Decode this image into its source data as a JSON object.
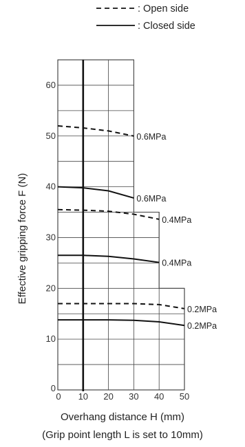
{
  "chart_data": {
    "type": "line",
    "xlabel": "Overhang distance H  (mm)",
    "xnote": "(Grip point length L is set to 10mm)",
    "ylabel": "Effective gripping force  F (N)",
    "xlim": [
      0,
      50
    ],
    "ylim": [
      0,
      65
    ],
    "x_ticks": [
      0,
      10,
      20,
      30,
      40,
      50
    ],
    "y_ticks": [
      0,
      10,
      20,
      30,
      40,
      50,
      60
    ],
    "x_ticks_text": [
      "0",
      "10",
      "20",
      "30",
      "40",
      "50"
    ],
    "y_ticks_text": [
      "0",
      "10",
      "20",
      "30",
      "40",
      "50",
      "60"
    ],
    "grid": true,
    "legend": [
      {
        "style": "dashed",
        "label": ": Open side"
      },
      {
        "style": "solid",
        "label": ": Closed side"
      }
    ],
    "series": [
      {
        "label": "0.6MPa",
        "style": "dashed",
        "x": [
          0,
          10,
          20,
          30
        ],
        "y": [
          52,
          51.6,
          51,
          50
        ]
      },
      {
        "label": "0.6MPa",
        "style": "solid",
        "x": [
          0,
          10,
          20,
          30
        ],
        "y": [
          40,
          39.8,
          39.2,
          37.8
        ]
      },
      {
        "label": "0.4MPa",
        "style": "dashed",
        "x": [
          0,
          10,
          20,
          30,
          40
        ],
        "y": [
          35.5,
          35.4,
          35.2,
          34.6,
          33.6
        ]
      },
      {
        "label": "0.4MPa",
        "style": "solid",
        "x": [
          0,
          10,
          20,
          30,
          40
        ],
        "y": [
          26.5,
          26.5,
          26.3,
          25.8,
          25.1
        ]
      },
      {
        "label": "0.2MPa",
        "style": "dashed",
        "x": [
          0,
          10,
          20,
          30,
          40,
          50
        ],
        "y": [
          17,
          17,
          17,
          17,
          16.8,
          16.0
        ]
      },
      {
        "label": "0.2MPa",
        "style": "solid",
        "x": [
          0,
          10,
          20,
          30,
          40,
          50
        ],
        "y": [
          13.8,
          13.8,
          13.8,
          13.7,
          13.4,
          12.7
        ]
      }
    ]
  }
}
